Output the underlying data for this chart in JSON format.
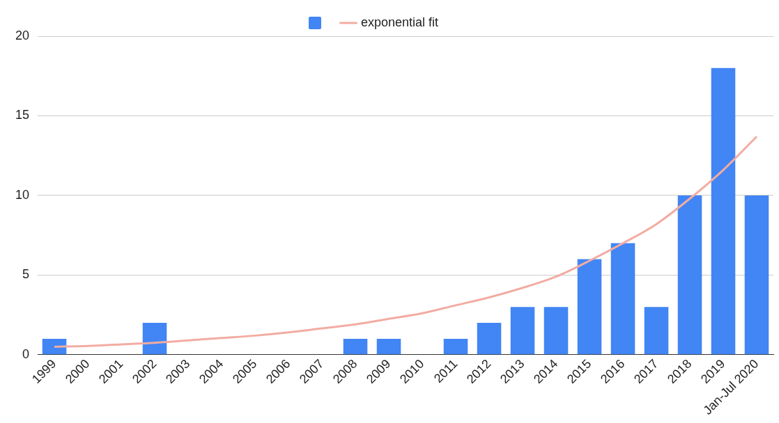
{
  "chart_data": {
    "type": "bar",
    "categories": [
      "1999",
      "2000",
      "2001",
      "2002",
      "2003",
      "2004",
      "2005",
      "2006",
      "2007",
      "2008",
      "2009",
      "2010",
      "2011",
      "2012",
      "2013",
      "2014",
      "2015",
      "2016",
      "2017",
      "2018",
      "2019",
      "Jan-Jul 2020"
    ],
    "series": [
      {
        "color": "#4285f4",
        "values": [
          1,
          0,
          0,
          2,
          0,
          0,
          0,
          0,
          0,
          1,
          1,
          0,
          1,
          2,
          3,
          3,
          6,
          7,
          3,
          10,
          18,
          10
        ]
      },
      {
        "name": "exponential fit",
        "type": "line",
        "color": "#f2aca2",
        "values": [
          0.5,
          0.55,
          0.65,
          0.75,
          0.9,
          1.05,
          1.2,
          1.4,
          1.65,
          1.9,
          2.25,
          2.6,
          3.1,
          3.6,
          4.2,
          4.9,
          5.9,
          7.0,
          8.2,
          9.8,
          11.6,
          13.7
        ]
      }
    ],
    "ylim": [
      0,
      20
    ],
    "yticks": [
      0,
      5,
      10,
      15,
      20
    ],
    "grid": "y",
    "legend": "top",
    "marker": "none"
  }
}
